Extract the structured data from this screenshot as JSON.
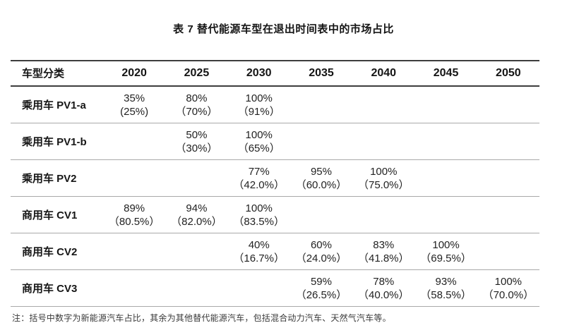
{
  "title": "表 7 替代能源车型在退出时间表中的市场占比",
  "colors": {
    "background": "#ffffff",
    "text": "#1e1e1e",
    "heavy_rule": "#3d3d3d",
    "light_rule": "#a9a9a9"
  },
  "table": {
    "header": {
      "label": "车型分类",
      "years": [
        "2020",
        "2025",
        "2030",
        "2035",
        "2040",
        "2045",
        "2050"
      ]
    },
    "rows": [
      {
        "label": "乘用车 PV1-a",
        "cells": [
          {
            "main": "35%",
            "sub": "(25%)"
          },
          {
            "main": "80%",
            "sub": "（70%）"
          },
          {
            "main": "100%",
            "sub": "（91%）"
          },
          {
            "main": "",
            "sub": ""
          },
          {
            "main": "",
            "sub": ""
          },
          {
            "main": "",
            "sub": ""
          },
          {
            "main": "",
            "sub": ""
          }
        ]
      },
      {
        "label": "乘用车 PV1-b",
        "cells": [
          {
            "main": "",
            "sub": ""
          },
          {
            "main": "50%",
            "sub": "（30%）"
          },
          {
            "main": "100%",
            "sub": "（65%）"
          },
          {
            "main": "",
            "sub": ""
          },
          {
            "main": "",
            "sub": ""
          },
          {
            "main": "",
            "sub": ""
          },
          {
            "main": "",
            "sub": ""
          }
        ]
      },
      {
        "label": "乘用车 PV2",
        "cells": [
          {
            "main": "",
            "sub": ""
          },
          {
            "main": "",
            "sub": ""
          },
          {
            "main": "77%",
            "sub": "（42.0%）"
          },
          {
            "main": "95%",
            "sub": "（60.0%）"
          },
          {
            "main": "100%",
            "sub": "（75.0%）"
          },
          {
            "main": "",
            "sub": ""
          },
          {
            "main": "",
            "sub": ""
          }
        ]
      },
      {
        "label": "商用车 CV1",
        "cells": [
          {
            "main": "89%",
            "sub": "（80.5%）"
          },
          {
            "main": "94%",
            "sub": "（82.0%）"
          },
          {
            "main": "100%",
            "sub": "（83.5%）"
          },
          {
            "main": "",
            "sub": ""
          },
          {
            "main": "",
            "sub": ""
          },
          {
            "main": "",
            "sub": ""
          },
          {
            "main": "",
            "sub": ""
          }
        ]
      },
      {
        "label": "商用车 CV2",
        "cells": [
          {
            "main": "",
            "sub": ""
          },
          {
            "main": "",
            "sub": ""
          },
          {
            "main": "40%",
            "sub": "（16.7%）"
          },
          {
            "main": "60%",
            "sub": "（24.0%）"
          },
          {
            "main": "83%",
            "sub": "（41.8%）"
          },
          {
            "main": "100%",
            "sub": "（69.5%）"
          },
          {
            "main": "",
            "sub": ""
          }
        ]
      },
      {
        "label": "商用车 CV3",
        "cells": [
          {
            "main": "",
            "sub": ""
          },
          {
            "main": "",
            "sub": ""
          },
          {
            "main": "",
            "sub": ""
          },
          {
            "main": "59%",
            "sub": "（26.5%）"
          },
          {
            "main": "78%",
            "sub": "（40.0%）"
          },
          {
            "main": "93%",
            "sub": "（58.5%）"
          },
          {
            "main": "100%",
            "sub": "（70.0%）"
          }
        ]
      }
    ]
  },
  "note": "注：括号中数字为新能源汽车占比，其余为其他替代能源汽车，包括混合动力汽车、天然气汽车等。"
}
